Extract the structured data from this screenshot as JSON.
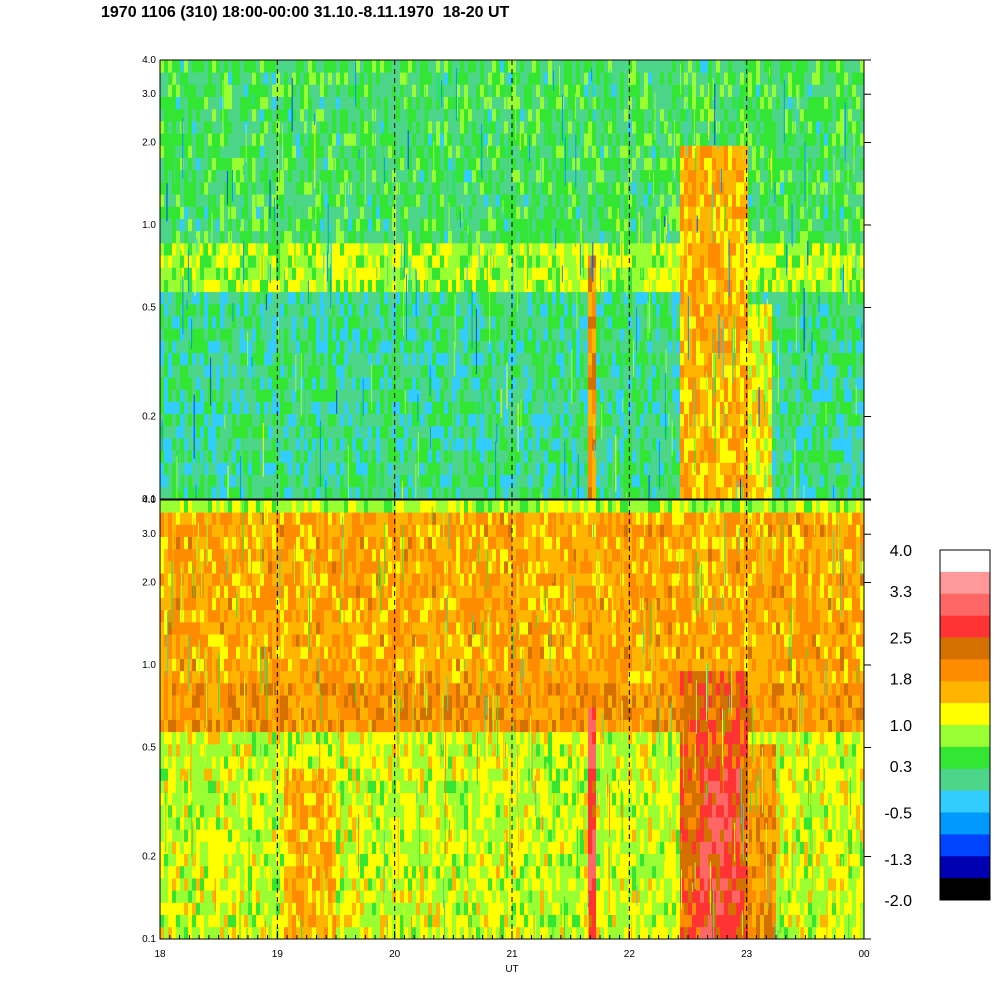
{
  "chart_data": {
    "type": "heatmap",
    "title": "1970 1106 (310) 18:00-00:00 31.10.-8.11.1970  18-20 UT",
    "xlabel": "UT",
    "x_ticks": [
      "18",
      "19",
      "20",
      "21",
      "22",
      "23",
      "00"
    ],
    "x_range_hours": [
      18,
      24
    ],
    "y_scale": "log",
    "y_ticks": [
      "0.1",
      "0.2",
      "0.5",
      "1.0",
      "2.0",
      "3.0",
      "4.0"
    ],
    "y_tick_values": [
      0.1,
      0.2,
      0.5,
      1.0,
      2.0,
      3.0,
      4.0
    ],
    "ylim": [
      0.1,
      4.0
    ],
    "dashed_vertical_lines_ut": [
      19,
      20,
      21,
      22,
      23
    ],
    "panels": [
      {
        "name": "upper",
        "bands": [
          {
            "f_range": [
              0.1,
              0.58
            ],
            "level": 0.1
          },
          {
            "f_range": [
              0.58,
              0.82
            ],
            "level": 0.9
          },
          {
            "f_range": [
              0.82,
              4.0
            ],
            "level": 0.3
          }
        ],
        "events": [
          {
            "t_range": [
              21.65,
              21.72
            ],
            "f_range": [
              0.1,
              0.8
            ],
            "level": 1.9
          },
          {
            "t_range": [
              22.43,
              23.0
            ],
            "f_range": [
              0.1,
              2.0
            ],
            "level": 1.6
          },
          {
            "t_range": [
              23.0,
              23.2
            ],
            "f_range": [
              0.1,
              0.5
            ],
            "level": 1.2
          }
        ]
      },
      {
        "name": "lower",
        "bands": [
          {
            "f_range": [
              0.1,
              0.55
            ],
            "level": 1.0
          },
          {
            "f_range": [
              0.55,
              0.85
            ],
            "level": 1.9
          },
          {
            "f_range": [
              0.85,
              3.5
            ],
            "level": 1.7
          },
          {
            "f_range": [
              3.5,
              4.0
            ],
            "level": 0.9
          }
        ],
        "events": [
          {
            "t_range": [
              19.05,
              19.5
            ],
            "f_range": [
              0.1,
              0.4
            ],
            "level": 1.6
          },
          {
            "t_range": [
              21.65,
              21.72
            ],
            "f_range": [
              0.1,
              0.7
            ],
            "level": 2.8
          },
          {
            "t_range": [
              22.43,
              23.0
            ],
            "f_range": [
              0.1,
              1.0
            ],
            "level": 2.4
          },
          {
            "t_range": [
              22.6,
              22.95
            ],
            "f_range": [
              0.1,
              0.4
            ],
            "level": 2.8
          },
          {
            "t_range": [
              23.0,
              23.25
            ],
            "f_range": [
              0.1,
              0.5
            ],
            "level": 1.9
          }
        ]
      }
    ],
    "colorbar": {
      "labels": [
        "4.0",
        "3.3",
        "2.5",
        "1.8",
        "1.0",
        "0.3",
        "-0.5",
        "-1.3",
        "-2.0"
      ],
      "label_values": [
        4.0,
        3.3,
        2.5,
        1.8,
        1.0,
        0.3,
        -0.5,
        -1.3,
        -2.0
      ],
      "colors_top_to_bottom": [
        "#ffffff",
        "#ff9999",
        "#ff6666",
        "#ff3333",
        "#d47000",
        "#ff8c00",
        "#ffb400",
        "#ffff00",
        "#99ff33",
        "#33e633",
        "#4dd68a",
        "#33ccff",
        "#0099ff",
        "#0044ff",
        "#0000b3",
        "#000000"
      ]
    }
  }
}
